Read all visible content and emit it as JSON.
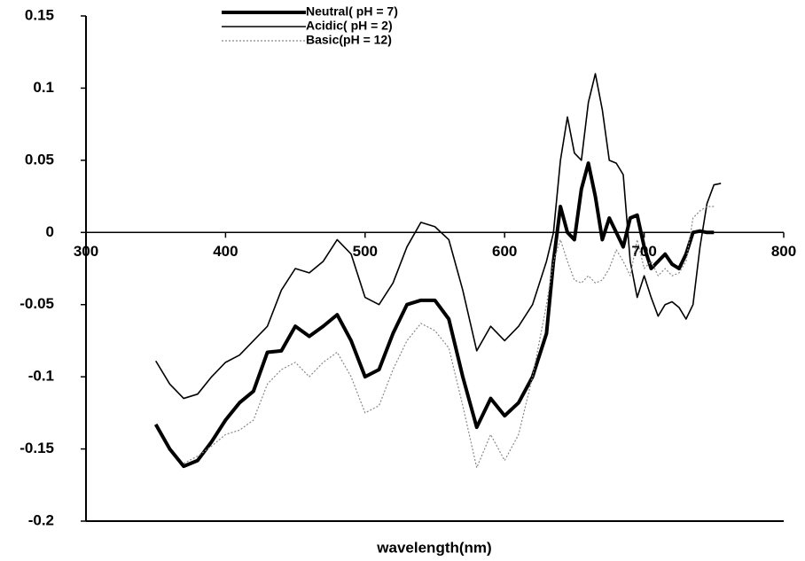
{
  "chart_data": {
    "type": "line",
    "x_label": "wavelength(nm)",
    "x": [
      350,
      360,
      370,
      380,
      390,
      400,
      410,
      420,
      430,
      440,
      450,
      460,
      470,
      480,
      490,
      500,
      510,
      520,
      530,
      540,
      550,
      560,
      570,
      580,
      590,
      600,
      610,
      620,
      630,
      635,
      640,
      645,
      650,
      655,
      660,
      665,
      670,
      675,
      680,
      685,
      690,
      695,
      700,
      705,
      710,
      715,
      720,
      725,
      730,
      735,
      740,
      745,
      750,
      755
    ],
    "series": [
      {
        "name": "Neutral( pH = 7)",
        "color": "#000000",
        "width": 4,
        "dash": "none",
        "values": [
          -0.133,
          -0.15,
          -0.162,
          -0.158,
          -0.145,
          -0.13,
          -0.118,
          -0.11,
          -0.083,
          -0.082,
          -0.065,
          -0.072,
          -0.065,
          -0.057,
          -0.075,
          -0.1,
          -0.095,
          -0.07,
          -0.05,
          -0.047,
          -0.047,
          -0.06,
          -0.1,
          -0.135,
          -0.115,
          -0.127,
          -0.118,
          -0.1,
          -0.07,
          -0.02,
          0.018,
          0.0,
          -0.005,
          0.03,
          0.048,
          0.025,
          -0.005,
          0.01,
          0.0,
          -0.01,
          0.01,
          0.012,
          -0.01,
          -0.025,
          -0.02,
          -0.015,
          -0.022,
          -0.025,
          -0.015,
          0.0,
          0.001,
          0.0,
          0.0,
          null
        ]
      },
      {
        "name": "Acidic( pH = 2)",
        "color": "#000000",
        "width": 1.6,
        "dash": "none",
        "values": [
          -0.089,
          -0.105,
          -0.115,
          -0.112,
          -0.1,
          -0.09,
          -0.085,
          -0.075,
          -0.065,
          -0.04,
          -0.025,
          -0.028,
          -0.02,
          -0.005,
          -0.015,
          -0.045,
          -0.05,
          -0.035,
          -0.01,
          0.007,
          0.004,
          -0.005,
          -0.04,
          -0.082,
          -0.065,
          -0.075,
          -0.065,
          -0.05,
          -0.02,
          0.0,
          0.05,
          0.08,
          0.055,
          0.05,
          0.09,
          0.11,
          0.085,
          0.05,
          0.048,
          0.04,
          -0.02,
          -0.045,
          -0.03,
          -0.045,
          -0.058,
          -0.05,
          -0.048,
          -0.052,
          -0.06,
          -0.05,
          -0.01,
          0.02,
          0.033,
          0.034
        ]
      },
      {
        "name": "Basic(pH = 12)",
        "color": "#888888",
        "width": 1.2,
        "dash": "2 2",
        "values": [
          null,
          null,
          -0.16,
          -0.155,
          -0.148,
          -0.14,
          -0.137,
          -0.13,
          -0.105,
          -0.095,
          -0.09,
          -0.1,
          -0.09,
          -0.083,
          -0.1,
          -0.125,
          -0.12,
          -0.095,
          -0.075,
          -0.063,
          -0.068,
          -0.08,
          -0.12,
          -0.163,
          -0.14,
          -0.158,
          -0.14,
          -0.1,
          -0.05,
          -0.02,
          -0.005,
          -0.02,
          -0.033,
          -0.035,
          -0.03,
          -0.035,
          -0.033,
          -0.025,
          -0.012,
          -0.02,
          -0.03,
          -0.005,
          -0.025,
          -0.02,
          -0.03,
          -0.025,
          -0.03,
          -0.028,
          -0.02,
          0.01,
          0.015,
          0.018,
          0.018,
          null
        ]
      }
    ],
    "xlim": [
      300,
      800
    ],
    "xticks": [
      300,
      400,
      500,
      600,
      700,
      800
    ],
    "ylim": [
      -0.2,
      0.15
    ],
    "yticks": [
      0.15,
      0.1,
      0.05,
      0,
      -0.05,
      -0.1,
      -0.15,
      -0.2
    ],
    "legend": "top",
    "grid": false
  }
}
